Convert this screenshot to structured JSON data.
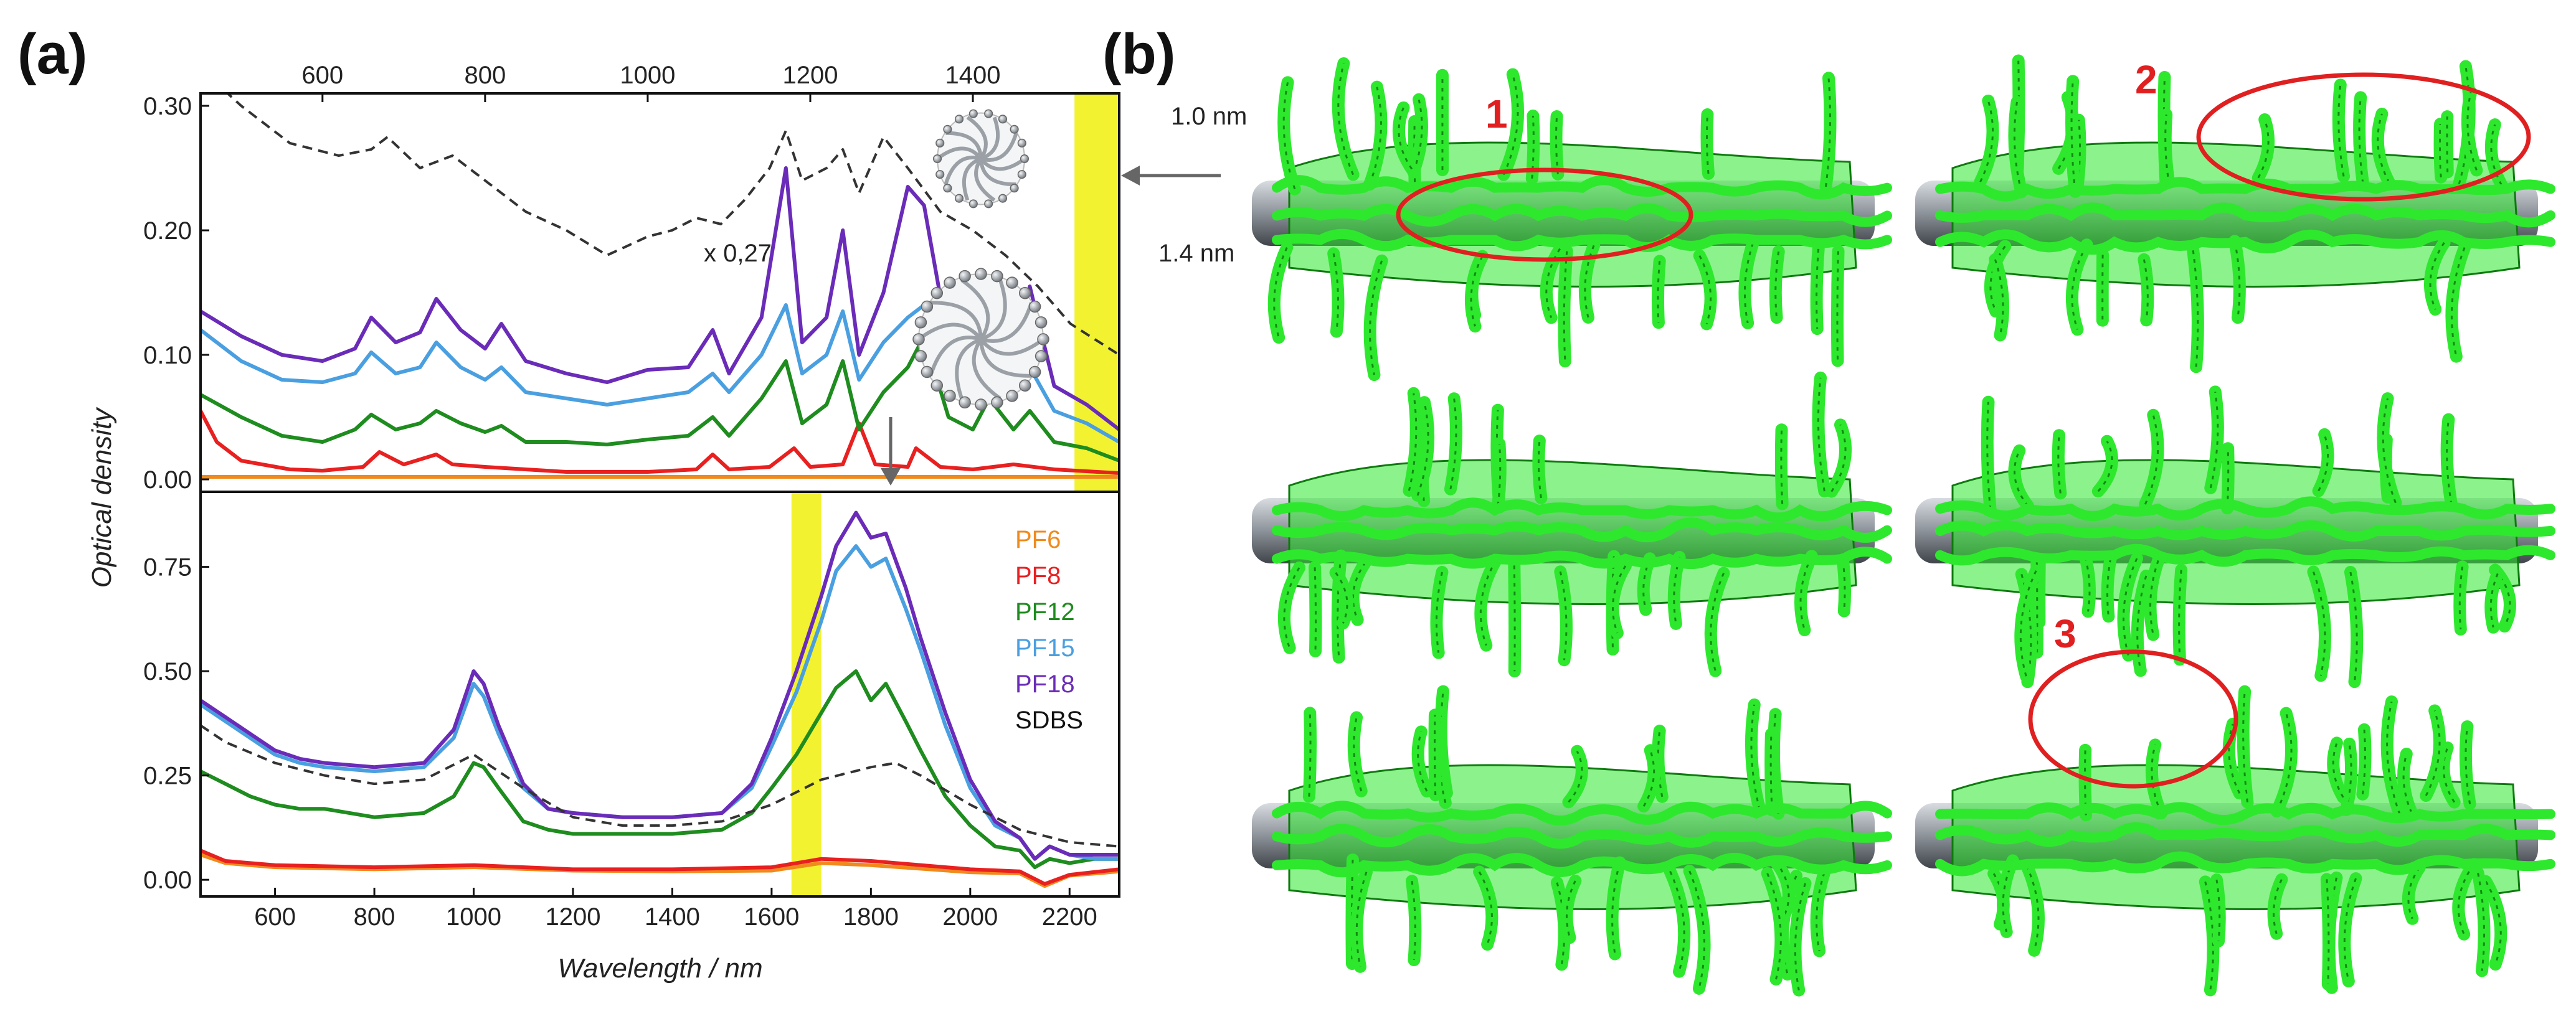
{
  "panels": {
    "a_label": "(a)",
    "b_label": "(b)"
  },
  "colors": {
    "PF6": "#f08a1c",
    "PF8": "#e82020",
    "PF12": "#1e8c1e",
    "PF15": "#4a9fe0",
    "PF18": "#6a2cb8",
    "SDBS": "#333333",
    "highlight": "#f2f230",
    "mesh": "#2ee82e",
    "nanotube": "#8a8f96",
    "marker": "#e02020"
  },
  "annotations": {
    "tube_small": "1.0 nm",
    "tube_large": "1.4 nm",
    "scale_note": "x 0,27"
  },
  "markers": [
    "1",
    "2",
    "3"
  ],
  "chart_data": [
    {
      "type": "line",
      "panel": "(a) top",
      "xlabel": "",
      "ylabel": "Optical density",
      "xlim": [
        450,
        1580
      ],
      "ylim": [
        -0.01,
        0.31
      ],
      "xticks": [
        600,
        800,
        1000,
        1200,
        1400
      ],
      "xtick_labels": [
        "600",
        "800",
        "1000",
        "1200",
        "1400"
      ],
      "yticks": [
        0.0,
        0.1,
        0.2,
        0.3
      ],
      "ytick_labels": [
        "0.00",
        "0.10",
        "0.20",
        "0.30"
      ],
      "highlight_band": [
        1525,
        1580
      ],
      "series": [
        {
          "name": "PF6",
          "x": [
            450,
            600,
            800,
            1000,
            1200,
            1400,
            1580
          ],
          "y": [
            0.002,
            0.002,
            0.002,
            0.002,
            0.002,
            0.002,
            0.002
          ]
        },
        {
          "name": "PF8",
          "x": [
            450,
            470,
            500,
            560,
            600,
            650,
            670,
            700,
            740,
            760,
            800,
            900,
            1000,
            1060,
            1080,
            1100,
            1150,
            1180,
            1200,
            1240,
            1260,
            1280,
            1320,
            1330,
            1360,
            1400,
            1450,
            1500,
            1580
          ],
          "y": [
            0.055,
            0.03,
            0.015,
            0.008,
            0.007,
            0.01,
            0.022,
            0.012,
            0.02,
            0.012,
            0.01,
            0.006,
            0.006,
            0.008,
            0.02,
            0.008,
            0.01,
            0.025,
            0.01,
            0.012,
            0.045,
            0.012,
            0.01,
            0.025,
            0.01,
            0.008,
            0.012,
            0.008,
            0.005
          ]
        },
        {
          "name": "PF12",
          "x": [
            450,
            500,
            550,
            600,
            640,
            660,
            690,
            720,
            740,
            770,
            800,
            820,
            850,
            900,
            950,
            1000,
            1050,
            1080,
            1100,
            1140,
            1170,
            1190,
            1220,
            1240,
            1260,
            1290,
            1320,
            1340,
            1370,
            1400,
            1420,
            1450,
            1470,
            1500,
            1540,
            1580
          ],
          "y": [
            0.068,
            0.05,
            0.035,
            0.03,
            0.04,
            0.052,
            0.04,
            0.045,
            0.055,
            0.045,
            0.038,
            0.043,
            0.03,
            0.03,
            0.028,
            0.032,
            0.035,
            0.05,
            0.035,
            0.065,
            0.095,
            0.045,
            0.06,
            0.095,
            0.04,
            0.07,
            0.09,
            0.115,
            0.05,
            0.04,
            0.065,
            0.04,
            0.055,
            0.03,
            0.025,
            0.015
          ]
        },
        {
          "name": "PF15",
          "x": [
            450,
            500,
            550,
            600,
            640,
            660,
            690,
            720,
            740,
            770,
            800,
            820,
            850,
            900,
            950,
            1000,
            1050,
            1080,
            1100,
            1140,
            1170,
            1190,
            1220,
            1240,
            1260,
            1290,
            1320,
            1340,
            1370,
            1400,
            1420,
            1450,
            1470,
            1500,
            1540,
            1580
          ],
          "y": [
            0.12,
            0.095,
            0.08,
            0.078,
            0.085,
            0.102,
            0.085,
            0.09,
            0.11,
            0.09,
            0.08,
            0.09,
            0.07,
            0.065,
            0.06,
            0.065,
            0.07,
            0.085,
            0.07,
            0.1,
            0.14,
            0.085,
            0.1,
            0.135,
            0.08,
            0.11,
            0.13,
            0.14,
            0.085,
            0.075,
            0.1,
            0.07,
            0.09,
            0.055,
            0.045,
            0.03
          ]
        },
        {
          "name": "PF18",
          "x": [
            450,
            500,
            550,
            600,
            640,
            660,
            690,
            720,
            740,
            770,
            800,
            820,
            850,
            900,
            950,
            1000,
            1050,
            1080,
            1100,
            1140,
            1170,
            1190,
            1220,
            1240,
            1260,
            1290,
            1320,
            1340,
            1370,
            1400,
            1420,
            1450,
            1470,
            1500,
            1540,
            1580
          ],
          "y": [
            0.135,
            0.115,
            0.1,
            0.095,
            0.105,
            0.13,
            0.11,
            0.118,
            0.145,
            0.12,
            0.105,
            0.125,
            0.095,
            0.085,
            0.078,
            0.088,
            0.09,
            0.12,
            0.085,
            0.13,
            0.25,
            0.11,
            0.13,
            0.2,
            0.1,
            0.15,
            0.235,
            0.22,
            0.11,
            0.105,
            0.14,
            0.1,
            0.155,
            0.075,
            0.06,
            0.04
          ]
        },
        {
          "name": "SDBS",
          "dashed": true,
          "x": [
            450,
            500,
            560,
            620,
            660,
            680,
            720,
            760,
            800,
            850,
            900,
            950,
            1000,
            1030,
            1060,
            1090,
            1120,
            1150,
            1170,
            1190,
            1220,
            1240,
            1260,
            1290,
            1320,
            1360,
            1400,
            1440,
            1480,
            1520,
            1580
          ],
          "y": [
            0.33,
            0.3,
            0.27,
            0.26,
            0.265,
            0.275,
            0.25,
            0.26,
            0.24,
            0.215,
            0.2,
            0.18,
            0.195,
            0.2,
            0.21,
            0.205,
            0.225,
            0.25,
            0.28,
            0.24,
            0.25,
            0.265,
            0.23,
            0.275,
            0.25,
            0.215,
            0.2,
            0.18,
            0.155,
            0.125,
            0.1
          ]
        }
      ]
    },
    {
      "type": "line",
      "panel": "(a) bottom",
      "xlabel": "Wavelength / nm",
      "ylabel": "Optical density",
      "xlim": [
        450,
        2300
      ],
      "ylim": [
        -0.04,
        0.93
      ],
      "xticks": [
        600,
        800,
        1000,
        1200,
        1400,
        1600,
        1800,
        2000,
        2200
      ],
      "xtick_labels": [
        "600",
        "800",
        "1000",
        "1200",
        "1400",
        "1600",
        "1800",
        "2000",
        "2200"
      ],
      "yticks": [
        0.0,
        0.25,
        0.5,
        0.75
      ],
      "ytick_labels": [
        "0.00",
        "0.25",
        "0.50",
        "0.75"
      ],
      "highlight_band": [
        1640,
        1700
      ],
      "legend": [
        "PF6",
        "PF8",
        "PF12",
        "PF15",
        "PF18",
        "SDBS"
      ],
      "series": [
        {
          "name": "PF6",
          "x": [
            450,
            500,
            600,
            800,
            1000,
            1200,
            1400,
            1600,
            1700,
            1800,
            2000,
            2100,
            2150,
            2200,
            2300
          ],
          "y": [
            0.06,
            0.04,
            0.03,
            0.025,
            0.03,
            0.022,
            0.02,
            0.022,
            0.04,
            0.035,
            0.018,
            0.015,
            -0.015,
            0.01,
            0.02
          ]
        },
        {
          "name": "PF8",
          "x": [
            450,
            500,
            600,
            800,
            1000,
            1200,
            1400,
            1600,
            1700,
            1800,
            2000,
            2100,
            2150,
            2200,
            2300
          ],
          "y": [
            0.07,
            0.045,
            0.035,
            0.03,
            0.035,
            0.025,
            0.025,
            0.03,
            0.05,
            0.045,
            0.025,
            0.02,
            -0.01,
            0.012,
            0.025
          ]
        },
        {
          "name": "PF12",
          "x": [
            450,
            500,
            550,
            600,
            650,
            700,
            800,
            900,
            960,
            1000,
            1020,
            1050,
            1100,
            1150,
            1200,
            1300,
            1400,
            1500,
            1560,
            1600,
            1650,
            1700,
            1730,
            1770,
            1800,
            1830,
            1870,
            1900,
            1950,
            2000,
            2050,
            2100,
            2130,
            2160,
            2200,
            2250,
            2300
          ],
          "y": [
            0.26,
            0.23,
            0.2,
            0.18,
            0.17,
            0.17,
            0.15,
            0.16,
            0.2,
            0.28,
            0.27,
            0.22,
            0.14,
            0.12,
            0.11,
            0.11,
            0.11,
            0.12,
            0.16,
            0.22,
            0.3,
            0.4,
            0.46,
            0.5,
            0.43,
            0.47,
            0.38,
            0.31,
            0.2,
            0.13,
            0.08,
            0.07,
            0.03,
            0.05,
            0.04,
            0.05,
            0.05
          ]
        },
        {
          "name": "PF15",
          "x": [
            450,
            500,
            550,
            600,
            650,
            700,
            800,
            900,
            960,
            1000,
            1020,
            1050,
            1100,
            1150,
            1200,
            1300,
            1400,
            1500,
            1560,
            1600,
            1650,
            1700,
            1730,
            1770,
            1800,
            1830,
            1870,
            1900,
            1950,
            2000,
            2050,
            2100,
            2130,
            2160,
            2200,
            2250,
            2300
          ],
          "y": [
            0.42,
            0.38,
            0.34,
            0.3,
            0.28,
            0.27,
            0.26,
            0.27,
            0.34,
            0.47,
            0.44,
            0.35,
            0.22,
            0.17,
            0.16,
            0.15,
            0.15,
            0.16,
            0.22,
            0.32,
            0.45,
            0.62,
            0.74,
            0.8,
            0.75,
            0.77,
            0.65,
            0.55,
            0.37,
            0.22,
            0.13,
            0.1,
            0.05,
            0.08,
            0.06,
            0.05,
            0.05
          ]
        },
        {
          "name": "PF18",
          "x": [
            450,
            500,
            550,
            600,
            650,
            700,
            800,
            900,
            960,
            1000,
            1020,
            1050,
            1100,
            1150,
            1200,
            1300,
            1400,
            1500,
            1560,
            1600,
            1650,
            1700,
            1730,
            1770,
            1800,
            1830,
            1870,
            1900,
            1950,
            2000,
            2050,
            2100,
            2130,
            2160,
            2200,
            2250,
            2300
          ],
          "y": [
            0.43,
            0.39,
            0.35,
            0.31,
            0.29,
            0.28,
            0.27,
            0.28,
            0.36,
            0.5,
            0.47,
            0.37,
            0.23,
            0.17,
            0.16,
            0.15,
            0.15,
            0.16,
            0.23,
            0.34,
            0.5,
            0.68,
            0.8,
            0.88,
            0.82,
            0.83,
            0.7,
            0.58,
            0.4,
            0.24,
            0.14,
            0.1,
            0.05,
            0.08,
            0.06,
            0.06,
            0.06
          ]
        },
        {
          "name": "SDBS",
          "dashed": true,
          "x": [
            450,
            500,
            600,
            700,
            800,
            900,
            1000,
            1100,
            1200,
            1300,
            1400,
            1500,
            1600,
            1700,
            1800,
            1850,
            1900,
            2000,
            2100,
            2200,
            2300
          ],
          "y": [
            0.37,
            0.33,
            0.28,
            0.25,
            0.23,
            0.24,
            0.3,
            0.22,
            0.15,
            0.13,
            0.13,
            0.14,
            0.18,
            0.24,
            0.27,
            0.28,
            0.25,
            0.18,
            0.12,
            0.09,
            0.08
          ]
        }
      ]
    }
  ]
}
